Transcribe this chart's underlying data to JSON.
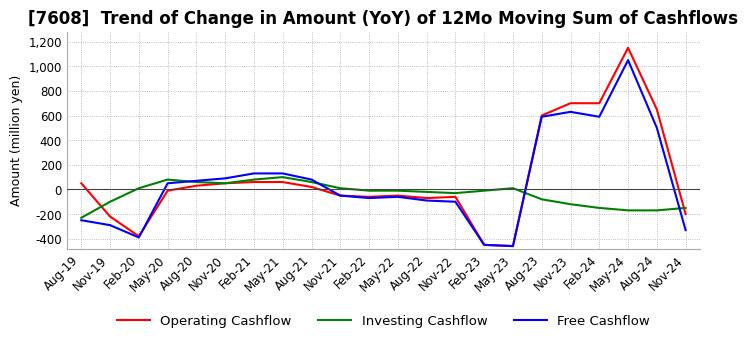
{
  "title": "[7608]  Trend of Change in Amount (YoY) of 12Mo Moving Sum of Cashflows",
  "ylabel": "Amount (million yen)",
  "ylim": [
    -480,
    1280
  ],
  "yticks": [
    -400,
    -200,
    0,
    200,
    400,
    600,
    800,
    1000,
    1200
  ],
  "x_labels": [
    "Aug-19",
    "Nov-19",
    "Feb-20",
    "May-20",
    "Aug-20",
    "Nov-20",
    "Feb-21",
    "May-21",
    "Aug-21",
    "Nov-21",
    "Feb-22",
    "May-22",
    "Aug-22",
    "Nov-22",
    "Feb-23",
    "May-23",
    "Aug-23",
    "Nov-23",
    "Feb-24",
    "May-24",
    "Aug-24",
    "Nov-24"
  ],
  "operating": [
    50,
    -220,
    -380,
    -10,
    30,
    50,
    60,
    60,
    20,
    -50,
    -60,
    -50,
    -70,
    -60,
    -450,
    -460,
    600,
    700,
    700,
    1150,
    650,
    -200
  ],
  "investing": [
    -230,
    -100,
    10,
    80,
    60,
    50,
    80,
    100,
    60,
    10,
    -10,
    -10,
    -20,
    -30,
    -10,
    10,
    -80,
    -120,
    -150,
    -170,
    -170,
    -150
  ],
  "free": [
    -250,
    -290,
    -390,
    50,
    70,
    90,
    130,
    130,
    80,
    -50,
    -70,
    -60,
    -90,
    -100,
    -450,
    -460,
    590,
    630,
    590,
    1050,
    500,
    -330
  ],
  "operating_color": "#ff0000",
  "investing_color": "#008000",
  "free_color": "#0000ff",
  "background_color": "#ffffff",
  "grid_color": "#aaaaaa",
  "title_fontsize": 12,
  "axis_fontsize": 9,
  "tick_fontsize": 8.5,
  "legend_fontsize": 9.5
}
